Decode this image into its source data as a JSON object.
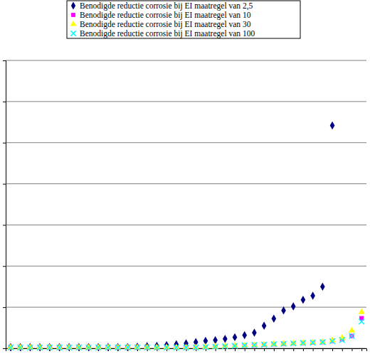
{
  "chart_data": {
    "type": "scatter",
    "categories": [
      null,
      null,
      null,
      null,
      null,
      null,
      null,
      null,
      null,
      null,
      null,
      null,
      null,
      null,
      null,
      null,
      null,
      null,
      null,
      null,
      null,
      null,
      null,
      null,
      null,
      null,
      null,
      null,
      null,
      null,
      null,
      null,
      null,
      null,
      null,
      null,
      null
    ],
    "series": [
      {
        "name": "Benodigde reductie corrosie bij EI maatregel van 2,5",
        "color": "#000080",
        "marker": "diamond",
        "values": [
          0.03,
          0.03,
          0.03,
          0.03,
          0.03,
          0.03,
          0.03,
          0.03,
          0.03,
          0.03,
          0.03,
          0.03,
          0.03,
          0.04,
          0.05,
          0.06,
          0.08,
          0.1,
          0.12,
          0.15,
          0.18,
          0.2,
          0.23,
          0.27,
          0.32,
          0.38,
          0.55,
          0.72,
          0.92,
          1.02,
          1.18,
          1.28,
          1.5,
          5.42,
          null,
          null,
          null
        ]
      },
      {
        "name": "Benodigde reductie corrosie bij EI maatregel van 10",
        "color": "#ff00ff",
        "marker": "square",
        "values": [
          0.02,
          0.02,
          0.02,
          0.02,
          0.02,
          0.02,
          0.02,
          0.02,
          0.02,
          0.02,
          0.02,
          0.02,
          0.02,
          0.02,
          0.02,
          0.02,
          0.02,
          0.02,
          0.02,
          0.02,
          0.03,
          0.04,
          0.05,
          0.06,
          0.07,
          0.08,
          0.09,
          0.1,
          0.11,
          0.12,
          0.13,
          0.14,
          0.15,
          0.18,
          0.22,
          0.3,
          0.73
        ]
      },
      {
        "name": "Benodigde reductie corrosie bij EI maatregel van 30",
        "color": "#ffff00",
        "marker": "triangle",
        "values": [
          0.02,
          0.02,
          0.02,
          0.02,
          0.02,
          0.02,
          0.02,
          0.02,
          0.02,
          0.02,
          0.02,
          0.02,
          0.02,
          0.02,
          0.02,
          0.02,
          0.02,
          0.02,
          0.02,
          0.02,
          0.03,
          0.04,
          0.05,
          0.06,
          0.07,
          0.08,
          0.09,
          0.1,
          0.11,
          0.12,
          0.13,
          0.14,
          0.15,
          0.19,
          0.25,
          0.43,
          0.88
        ]
      },
      {
        "name": "Benodigde reductie corrosie bij EI maatregel van 100",
        "color": "#00ffff",
        "marker": "x",
        "values": [
          0.02,
          0.02,
          0.02,
          0.02,
          0.02,
          0.02,
          0.02,
          0.02,
          0.02,
          0.02,
          0.02,
          0.02,
          0.02,
          0.02,
          0.02,
          0.02,
          0.02,
          0.02,
          0.02,
          0.02,
          0.03,
          0.04,
          0.05,
          0.06,
          0.07,
          0.08,
          0.09,
          0.1,
          0.11,
          0.12,
          0.13,
          0.14,
          0.15,
          0.17,
          0.2,
          0.3,
          0.65
        ]
      }
    ],
    "ylim": [
      0,
      7
    ],
    "yticks": [
      0,
      1,
      2,
      3,
      4,
      5,
      6,
      7
    ],
    "grid": true,
    "legend": "top",
    "tick_labels": false
  }
}
